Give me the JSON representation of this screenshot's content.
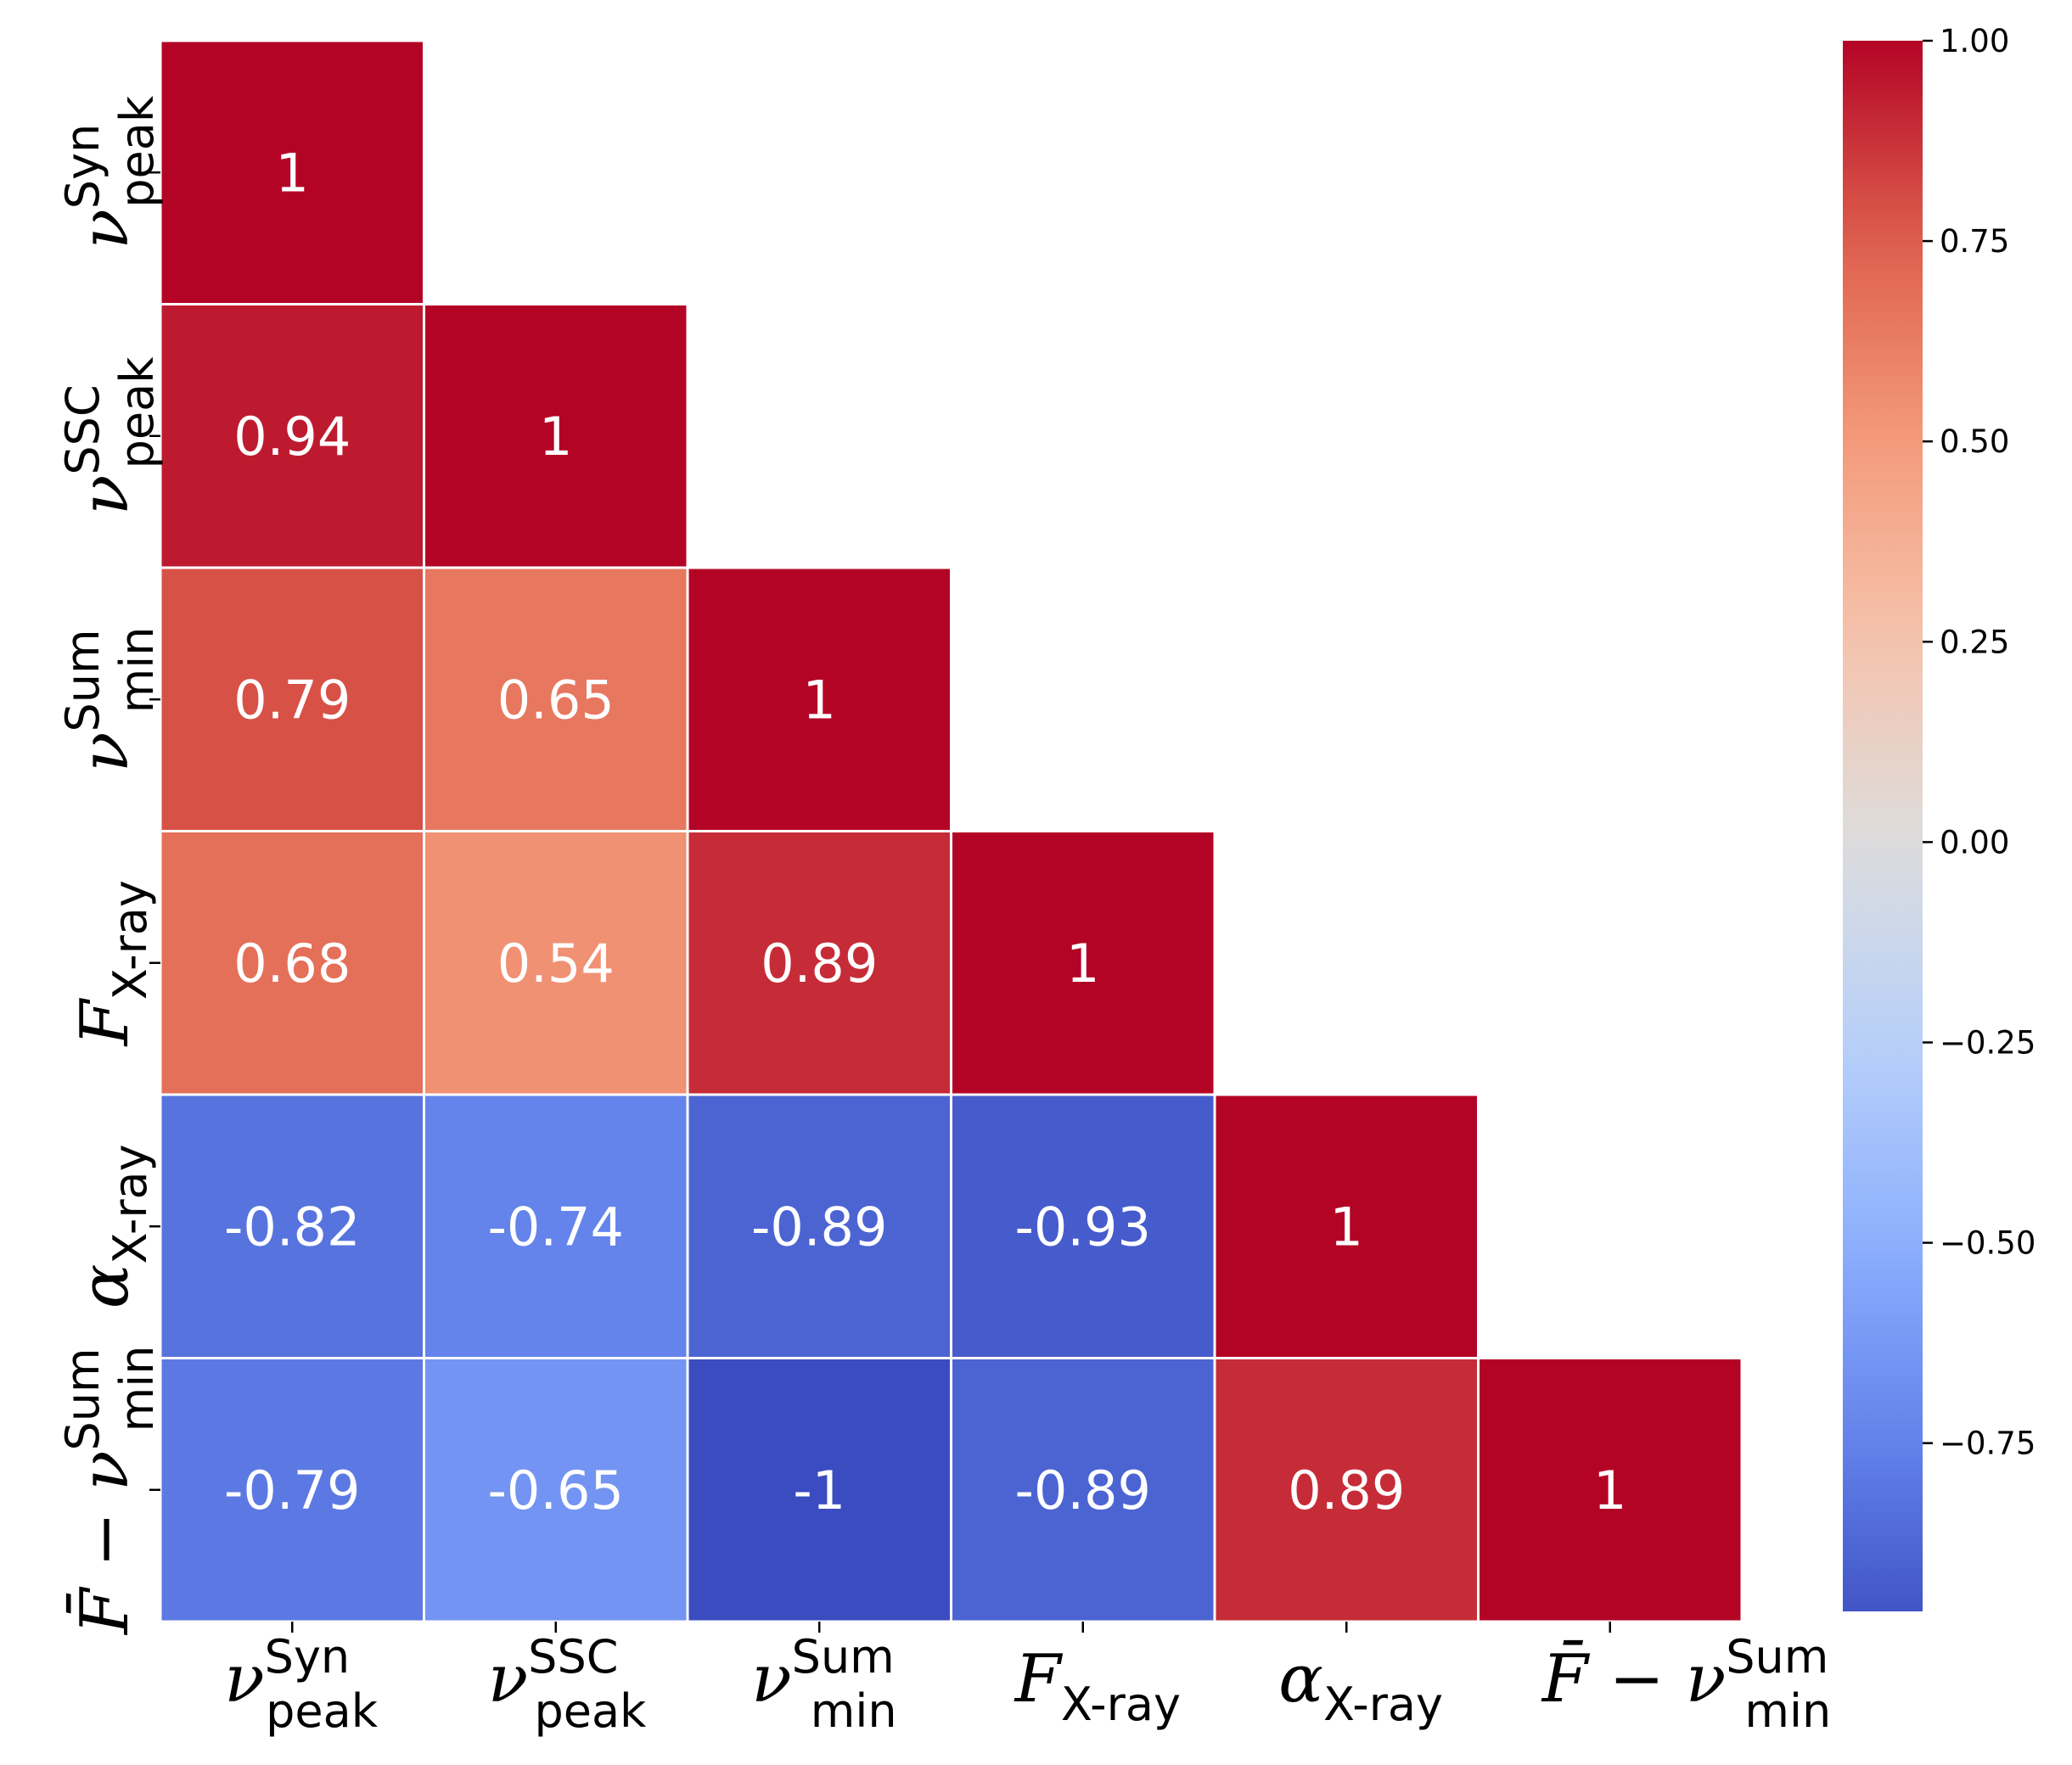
{
  "chart_data": {
    "type": "heatmap",
    "title": "",
    "variables": [
      {
        "main": "ν",
        "sub": "peak",
        "sup": "Syn"
      },
      {
        "main": "ν",
        "sub": "peak",
        "sup": "SSC"
      },
      {
        "main": "ν",
        "sub": "min",
        "sup": "Sum"
      },
      {
        "main": "F",
        "sub": "X-ray",
        "sup": ""
      },
      {
        "main": "α",
        "sub": "X-ray",
        "sup": ""
      },
      {
        "main": "F̄ − ν",
        "sub": "min",
        "sup": "Sum"
      }
    ],
    "matrix": [
      [
        1,
        null,
        null,
        null,
        null,
        null
      ],
      [
        0.94,
        1,
        null,
        null,
        null,
        null
      ],
      [
        0.79,
        0.65,
        1,
        null,
        null,
        null
      ],
      [
        0.68,
        0.54,
        0.89,
        1,
        null,
        null
      ],
      [
        -0.82,
        -0.74,
        -0.89,
        -0.93,
        1,
        null
      ],
      [
        -0.79,
        -0.65,
        -1,
        -0.89,
        0.89,
        1
      ]
    ],
    "cell_labels": [
      [
        "1",
        "",
        "",
        "",
        "",
        ""
      ],
      [
        "0.94",
        "1",
        "",
        "",
        "",
        ""
      ],
      [
        "0.79",
        "0.65",
        "1",
        "",
        "",
        ""
      ],
      [
        "0.68",
        "0.54",
        "0.89",
        "1",
        "",
        ""
      ],
      [
        "-0.82",
        "-0.74",
        "-0.89",
        "-0.93",
        "1",
        ""
      ],
      [
        "-0.79",
        "-0.65",
        "-1",
        "-0.89",
        "0.89",
        "1"
      ]
    ],
    "mask": "upper-triangle",
    "colormap": "coolwarm",
    "vmin": -1,
    "vmax": 1,
    "colorbar": {
      "range": [
        -1,
        1
      ],
      "ticks": [
        1.0,
        0.75,
        0.5,
        0.25,
        0.0,
        -0.25,
        -0.5,
        -0.75
      ],
      "tick_labels": [
        "1.00",
        "0.75",
        "0.50",
        "0.25",
        "0.00",
        "−0.25",
        "−0.50",
        "−0.75"
      ]
    },
    "xlabel": "",
    "ylabel": ""
  }
}
